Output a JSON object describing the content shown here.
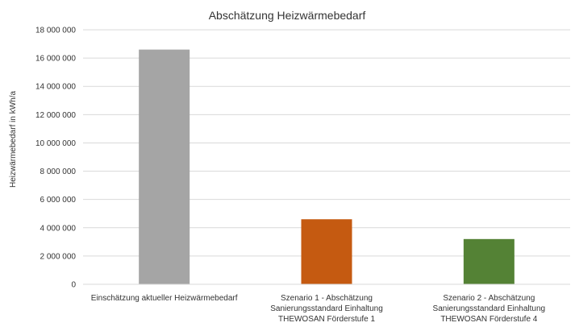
{
  "chart_data": {
    "type": "bar",
    "title": "Abschätzung Heizwärmebedarf",
    "ylabel": "Heizwärmebedarf in kWh/a",
    "xlabel": "",
    "ylim": [
      0,
      18000000
    ],
    "yticks": [
      {
        "value": 0,
        "label": "0"
      },
      {
        "value": 2000000,
        "label": "2 000 000"
      },
      {
        "value": 4000000,
        "label": "4 000 000"
      },
      {
        "value": 6000000,
        "label": "6 000 000"
      },
      {
        "value": 8000000,
        "label": "8 000 000"
      },
      {
        "value": 10000000,
        "label": "10 000 000"
      },
      {
        "value": 12000000,
        "label": "12 000 000"
      },
      {
        "value": 14000000,
        "label": "14 000 000"
      },
      {
        "value": 16000000,
        "label": "16 000 000"
      },
      {
        "value": 18000000,
        "label": "18 000 000"
      }
    ],
    "grid": true,
    "legend": "none",
    "categories": [
      [
        "Einschätzung aktueller Heizwärmebedarf"
      ],
      [
        "Szenario 1 - Abschätzung",
        "Sanierungsstandard Einhaltung",
        "THEWOSAN Förderstufe 1"
      ],
      [
        "Szenario 2 - Abschätzung",
        "Sanierungsstandard Einhaltung",
        "THEWOSAN Förderstufe 4"
      ]
    ],
    "values": [
      16600000,
      4600000,
      3200000
    ],
    "colors": [
      "#a5a5a5",
      "#c55a11",
      "#548235"
    ]
  }
}
